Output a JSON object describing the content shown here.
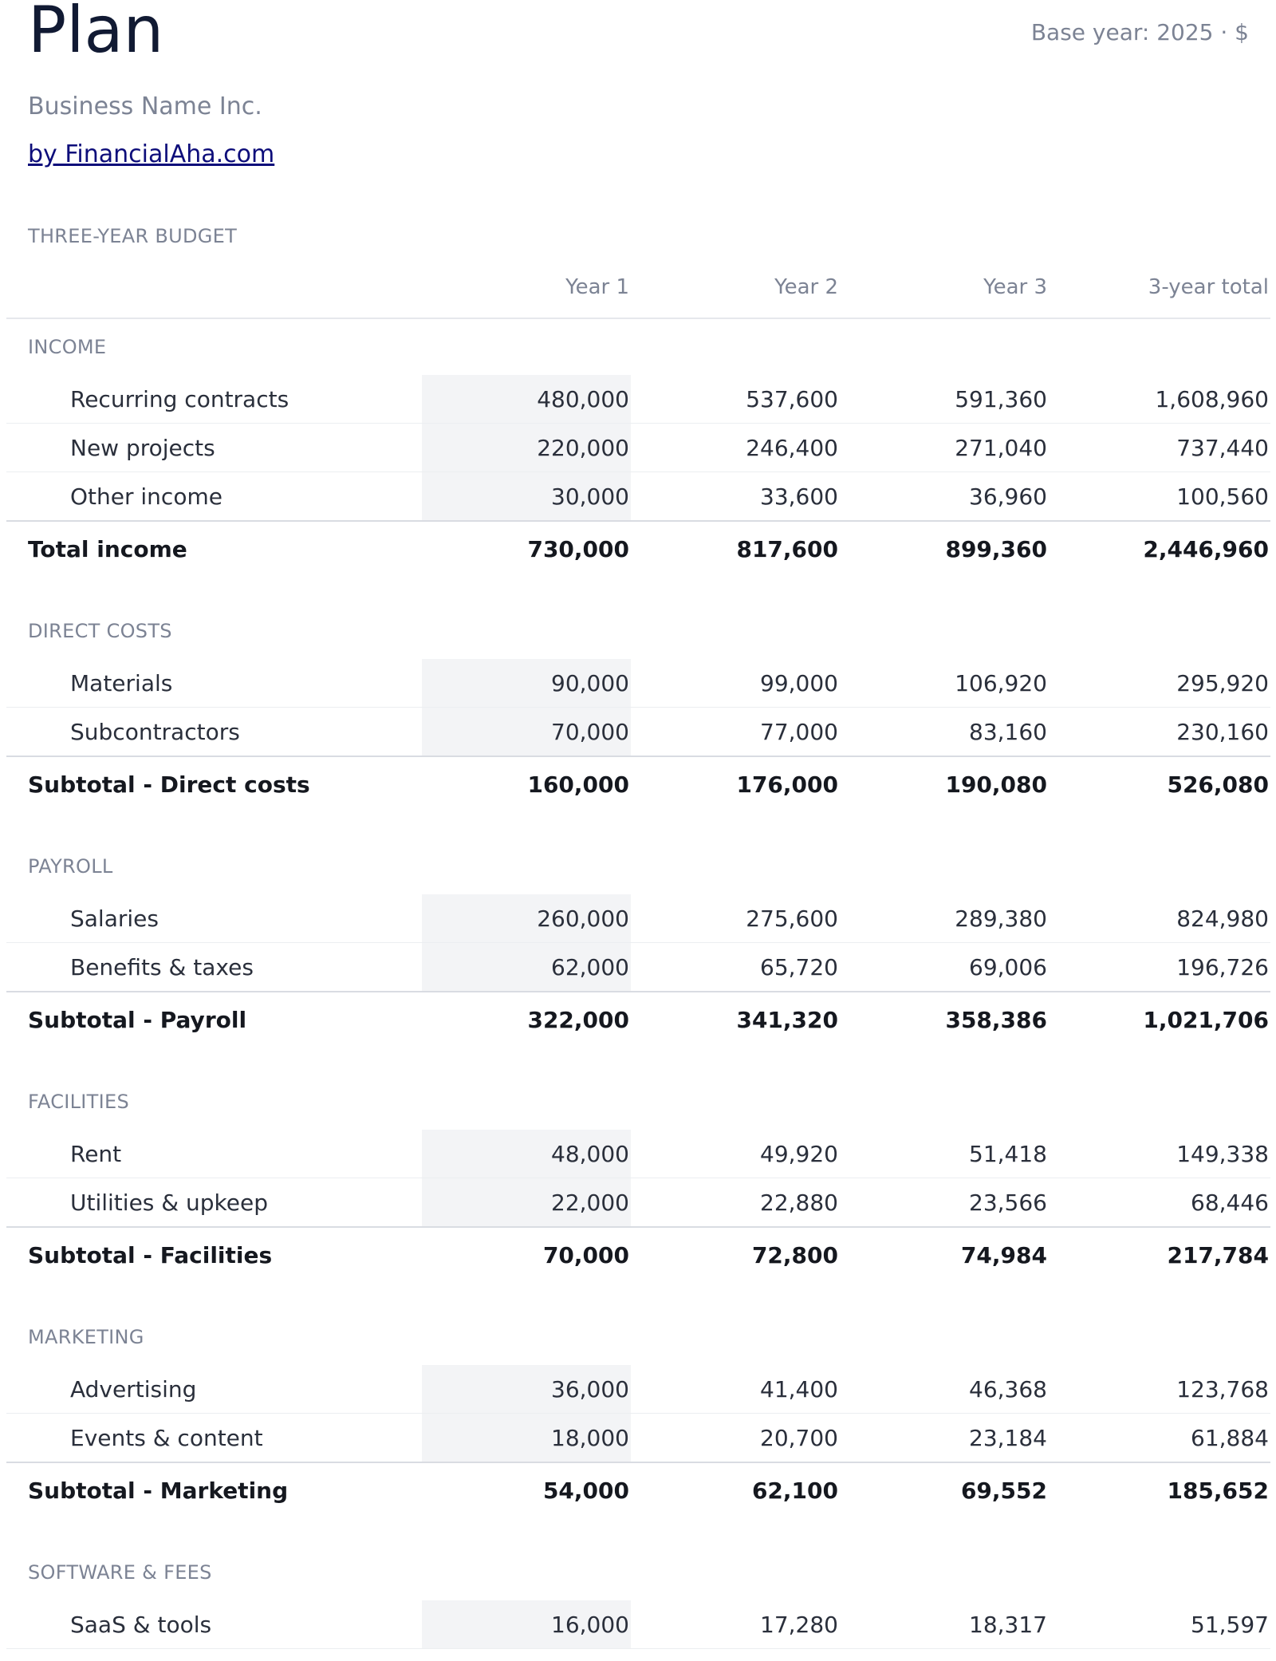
{
  "header": {
    "title": "Plan",
    "base_year": "Base year: 2025 · $",
    "business_name": "Business Name Inc.",
    "byline": "by FinancialAha.com"
  },
  "table": {
    "caption": "THREE-YEAR BUDGET",
    "columns": [
      "Year 1",
      "Year 2",
      "Year 3",
      "3-year total"
    ],
    "sections": [
      {
        "name": "INCOME",
        "items": [
          {
            "label": "Recurring contracts",
            "values": [
              "480,000",
              "537,600",
              "591,360",
              "1,608,960"
            ]
          },
          {
            "label": "New projects",
            "values": [
              "220,000",
              "246,400",
              "271,040",
              "737,440"
            ]
          },
          {
            "label": "Other income",
            "values": [
              "30,000",
              "33,600",
              "36,960",
              "100,560"
            ]
          }
        ],
        "total": {
          "label": "Total income",
          "values": [
            "730,000",
            "817,600",
            "899,360",
            "2,446,960"
          ]
        }
      },
      {
        "name": "DIRECT COSTS",
        "items": [
          {
            "label": "Materials",
            "values": [
              "90,000",
              "99,000",
              "106,920",
              "295,920"
            ]
          },
          {
            "label": "Subcontractors",
            "values": [
              "70,000",
              "77,000",
              "83,160",
              "230,160"
            ]
          }
        ],
        "total": {
          "label": "Subtotal - Direct costs",
          "values": [
            "160,000",
            "176,000",
            "190,080",
            "526,080"
          ]
        }
      },
      {
        "name": "PAYROLL",
        "items": [
          {
            "label": "Salaries",
            "values": [
              "260,000",
              "275,600",
              "289,380",
              "824,980"
            ]
          },
          {
            "label": "Benefits & taxes",
            "values": [
              "62,000",
              "65,720",
              "69,006",
              "196,726"
            ]
          }
        ],
        "total": {
          "label": "Subtotal - Payroll",
          "values": [
            "322,000",
            "341,320",
            "358,386",
            "1,021,706"
          ]
        }
      },
      {
        "name": "FACILITIES",
        "items": [
          {
            "label": "Rent",
            "values": [
              "48,000",
              "49,920",
              "51,418",
              "149,338"
            ]
          },
          {
            "label": "Utilities & upkeep",
            "values": [
              "22,000",
              "22,880",
              "23,566",
              "68,446"
            ]
          }
        ],
        "total": {
          "label": "Subtotal - Facilities",
          "values": [
            "70,000",
            "72,800",
            "74,984",
            "217,784"
          ]
        }
      },
      {
        "name": "MARKETING",
        "items": [
          {
            "label": "Advertising",
            "values": [
              "36,000",
              "41,400",
              "46,368",
              "123,768"
            ]
          },
          {
            "label": "Events & content",
            "values": [
              "18,000",
              "20,700",
              "23,184",
              "61,884"
            ]
          }
        ],
        "total": {
          "label": "Subtotal - Marketing",
          "values": [
            "54,000",
            "62,100",
            "69,552",
            "185,652"
          ]
        }
      },
      {
        "name": "SOFTWARE & FEES",
        "items": [
          {
            "label": "SaaS & tools",
            "values": [
              "16,000",
              "17,280",
              "18,317",
              "51,597"
            ]
          }
        ]
      }
    ]
  }
}
